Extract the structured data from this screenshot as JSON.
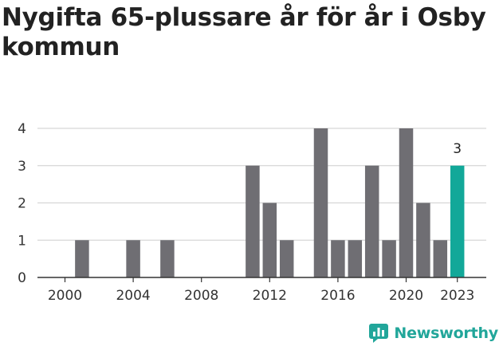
{
  "chart_data": {
    "type": "bar",
    "title": "Nygifta 65-plussare år för år i Osby kommun",
    "categories": [
      2000,
      2001,
      2002,
      2003,
      2004,
      2005,
      2006,
      2007,
      2008,
      2009,
      2010,
      2011,
      2012,
      2013,
      2014,
      2015,
      2016,
      2017,
      2018,
      2019,
      2020,
      2021,
      2022,
      2023
    ],
    "values": [
      0,
      1,
      0,
      0,
      1,
      0,
      1,
      0,
      0,
      0,
      0,
      3,
      2,
      1,
      0,
      4,
      1,
      1,
      3,
      1,
      4,
      2,
      1,
      3
    ],
    "x_ticks": [
      2000,
      2004,
      2008,
      2012,
      2016,
      2020,
      2023
    ],
    "y_ticks": [
      0,
      1,
      2,
      3,
      4
    ],
    "ylim": [
      0,
      4
    ],
    "xlabel": "",
    "ylabel": "",
    "highlight": {
      "category": 2023,
      "label": "3"
    },
    "colors": {
      "bar": "#6f6e73",
      "highlight": "#12a899",
      "grid": "#d6d6d6",
      "axis": "#333333"
    }
  },
  "brand": {
    "name": "Newsworthy",
    "icon": "bar-chart-icon"
  }
}
